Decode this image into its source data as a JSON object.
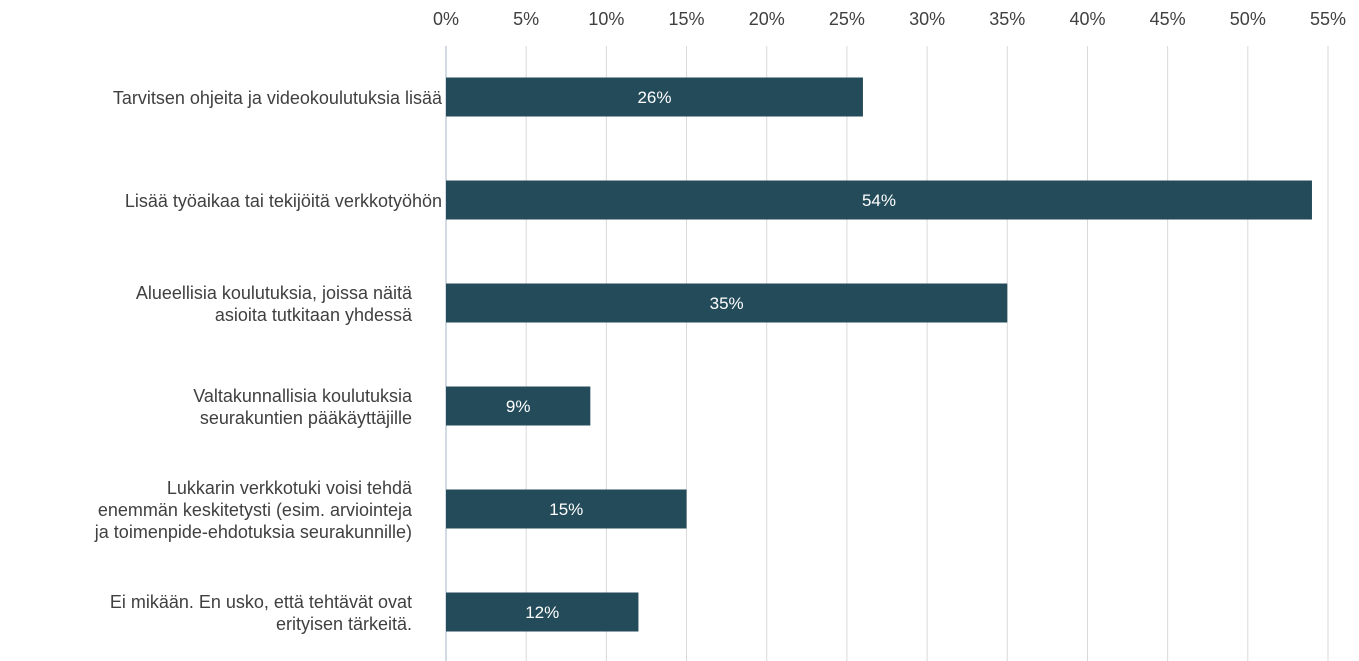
{
  "chart_data": {
    "type": "bar",
    "orientation": "horizontal",
    "axis_position": "top",
    "xlim": [
      0,
      55
    ],
    "x_ticks": [
      0,
      5,
      10,
      15,
      20,
      25,
      30,
      35,
      40,
      45,
      50,
      55
    ],
    "x_tick_labels": [
      "0%",
      "5%",
      "10%",
      "15%",
      "20%",
      "25%",
      "30%",
      "35%",
      "40%",
      "45%",
      "50%",
      "55%"
    ],
    "grid": true,
    "bar_color": "#244b5a",
    "categories": [
      [
        "Tarvitsen ohjeita ja videokoulutuksia lisää"
      ],
      [
        "Lisää työaikaa tai tekijöitä verkkotyöhön"
      ],
      [
        "Alueellisia koulutuksia, joissa näitä",
        "asioita tutkitaan yhdessä"
      ],
      [
        "Valtakunnallisia koulutuksia",
        "seurakuntien pääkäyttäjille"
      ],
      [
        "Lukkarin verkkotuki voisi tehdä",
        "enemmän keskitetysti (esim. arviointeja",
        "ja toimenpide-ehdotuksia seurakunnille)"
      ],
      [
        "Ei mikään. En usko, että tehtävät ovat",
        "erityisen tärkeitä."
      ]
    ],
    "values": [
      26,
      54,
      35,
      9,
      15,
      12
    ],
    "data_labels": [
      "26%",
      "54%",
      "35%",
      "9%",
      "15%",
      "12%"
    ]
  }
}
